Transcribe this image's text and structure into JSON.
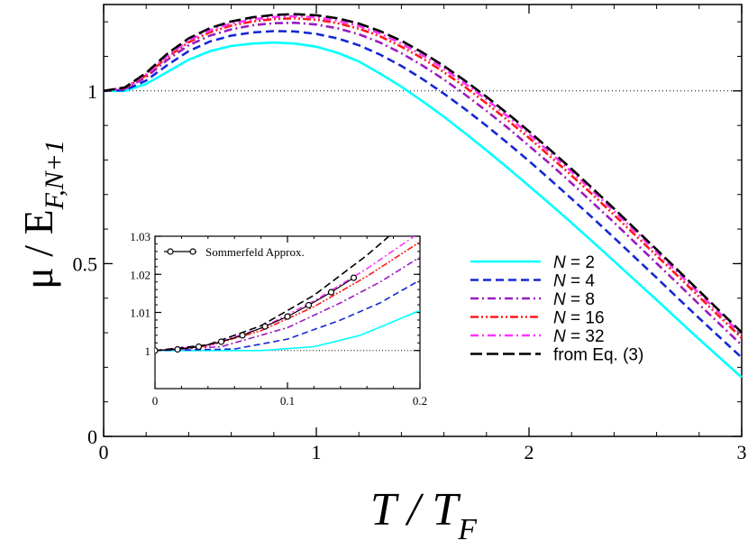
{
  "chart_data": [
    {
      "type": "line",
      "x_min": 0,
      "x_max": 3,
      "y_min": 0,
      "y_max": 1.25,
      "xticks": [
        0,
        1,
        2,
        3
      ],
      "yticks": [
        0,
        0.5,
        1
      ],
      "xtick_labels": [
        "0",
        "1",
        "2",
        "3"
      ],
      "ytick_labels": [
        "0",
        "0.5",
        "1"
      ],
      "xlabel": "T / T",
      "xlabel_sub": "F",
      "ylabel": "μ / E",
      "ylabel_sub": "F,N+1",
      "reference_line": 1,
      "series": [
        {
          "name": "N = 2",
          "label_italic": "N",
          "label_rest": " = 2",
          "color": "#00ffff",
          "dash": "",
          "x": [
            0,
            0.1,
            0.2,
            0.3,
            0.4,
            0.5,
            0.6,
            0.7,
            0.8,
            0.9,
            1.0,
            1.1,
            1.2,
            1.3,
            1.4,
            1.5,
            1.6,
            1.7,
            1.8,
            1.9,
            2.0,
            2.1,
            2.2,
            2.3,
            2.4,
            2.5,
            2.6,
            2.7,
            2.8,
            2.9,
            3.0
          ],
          "y": [
            1.0,
            1.0,
            1.02,
            1.055,
            1.09,
            1.115,
            1.13,
            1.137,
            1.14,
            1.137,
            1.128,
            1.11,
            1.085,
            1.05,
            1.012,
            0.97,
            0.925,
            0.877,
            0.828,
            0.777,
            0.725,
            0.672,
            0.618,
            0.563,
            0.507,
            0.451,
            0.395,
            0.338,
            0.281,
            0.226,
            0.171
          ]
        },
        {
          "name": "N = 4",
          "label_italic": "N",
          "label_rest": " = 4",
          "color": "#1428d6",
          "dash": "9,5",
          "x": [
            0,
            0.1,
            0.2,
            0.3,
            0.4,
            0.5,
            0.6,
            0.7,
            0.8,
            0.9,
            1.0,
            1.1,
            1.2,
            1.3,
            1.4,
            1.5,
            1.6,
            1.7,
            1.8,
            1.9,
            2.0,
            2.1,
            2.2,
            2.3,
            2.4,
            2.5,
            2.6,
            2.7,
            2.8,
            2.9,
            3.0
          ],
          "y": [
            1.0,
            1.002,
            1.03,
            1.075,
            1.115,
            1.143,
            1.16,
            1.169,
            1.173,
            1.172,
            1.165,
            1.152,
            1.132,
            1.105,
            1.072,
            1.034,
            0.992,
            0.947,
            0.899,
            0.849,
            0.797,
            0.743,
            0.688,
            0.632,
            0.575,
            0.517,
            0.459,
            0.4,
            0.342,
            0.285,
            0.228
          ]
        },
        {
          "name": "N = 8",
          "label_italic": "N",
          "label_rest": " = 8",
          "color": "#9b1bc0",
          "dash": "9,4,2,4",
          "x": [
            0,
            0.1,
            0.2,
            0.3,
            0.4,
            0.5,
            0.6,
            0.7,
            0.8,
            0.9,
            1.0,
            1.1,
            1.2,
            1.3,
            1.4,
            1.5,
            1.6,
            1.7,
            1.8,
            1.9,
            2.0,
            2.1,
            2.2,
            2.3,
            2.4,
            2.5,
            2.6,
            2.7,
            2.8,
            2.9,
            3.0
          ],
          "y": [
            1.0,
            1.006,
            1.04,
            1.09,
            1.132,
            1.16,
            1.178,
            1.19,
            1.196,
            1.197,
            1.192,
            1.181,
            1.164,
            1.14,
            1.109,
            1.073,
            1.033,
            0.989,
            0.942,
            0.893,
            0.841,
            0.788,
            0.733,
            0.676,
            0.619,
            0.56,
            0.501,
            0.442,
            0.382,
            0.323,
            0.264
          ]
        },
        {
          "name": "N = 16",
          "label_italic": "N",
          "label_rest": " = 16",
          "color": "#ff1a1a",
          "dash": "9,3,2,3,2,3",
          "x": [
            0,
            0.1,
            0.2,
            0.3,
            0.4,
            0.5,
            0.6,
            0.7,
            0.8,
            0.9,
            1.0,
            1.1,
            1.2,
            1.3,
            1.4,
            1.5,
            1.6,
            1.7,
            1.8,
            1.9,
            2.0,
            2.1,
            2.2,
            2.3,
            2.4,
            2.5,
            2.6,
            2.7,
            2.8,
            2.9,
            3.0
          ],
          "y": [
            1.0,
            1.008,
            1.045,
            1.098,
            1.141,
            1.17,
            1.189,
            1.201,
            1.208,
            1.21,
            1.206,
            1.196,
            1.18,
            1.158,
            1.128,
            1.094,
            1.054,
            1.011,
            0.964,
            0.915,
            0.864,
            0.81,
            0.755,
            0.699,
            0.641,
            0.582,
            0.523,
            0.464,
            0.404,
            0.344,
            0.285
          ]
        },
        {
          "name": "N = 32",
          "label_italic": "N",
          "label_rest": " = 32",
          "color": "#ff33ff",
          "dash": "9,4,2,4",
          "x": [
            0,
            0.1,
            0.2,
            0.3,
            0.4,
            0.5,
            0.6,
            0.7,
            0.8,
            0.9,
            1.0,
            1.1,
            1.2,
            1.3,
            1.4,
            1.5,
            1.6,
            1.7,
            1.8,
            1.9,
            2.0,
            2.1,
            2.2,
            2.3,
            2.4,
            2.5,
            2.6,
            2.7,
            2.8,
            2.9,
            3.0
          ],
          "y": [
            1.0,
            1.009,
            1.048,
            1.102,
            1.146,
            1.176,
            1.195,
            1.207,
            1.214,
            1.216,
            1.213,
            1.203,
            1.188,
            1.166,
            1.137,
            1.103,
            1.064,
            1.021,
            0.975,
            0.926,
            0.875,
            0.821,
            0.766,
            0.71,
            0.652,
            0.593,
            0.534,
            0.474,
            0.414,
            0.354,
            0.294
          ]
        },
        {
          "name": "from Eq. (3)",
          "label_italic": "",
          "label_rest": "from Eq. (3)",
          "color": "#000000",
          "dash": "13,5",
          "x": [
            0,
            0.1,
            0.2,
            0.3,
            0.4,
            0.5,
            0.6,
            0.7,
            0.8,
            0.9,
            1.0,
            1.1,
            1.2,
            1.3,
            1.4,
            1.5,
            1.6,
            1.7,
            1.8,
            1.9,
            2.0,
            2.1,
            2.2,
            2.3,
            2.4,
            2.5,
            2.6,
            2.7,
            2.8,
            2.9,
            3.0
          ],
          "y": [
            1.0,
            1.01,
            1.052,
            1.108,
            1.152,
            1.182,
            1.201,
            1.213,
            1.22,
            1.222,
            1.219,
            1.21,
            1.195,
            1.173,
            1.145,
            1.111,
            1.072,
            1.029,
            0.983,
            0.934,
            0.883,
            0.829,
            0.774,
            0.717,
            0.659,
            0.6,
            0.541,
            0.481,
            0.421,
            0.361,
            0.301
          ]
        }
      ]
    },
    {
      "type": "line",
      "role": "inset",
      "x_min": 0,
      "x_max": 0.2,
      "y_min": 0.99,
      "y_max": 1.03,
      "xticks": [
        0,
        0.1,
        0.2
      ],
      "yticks": [
        1,
        1.01,
        1.02,
        1.03
      ],
      "xtick_labels": [
        "0",
        "0.1",
        "0.2"
      ],
      "ytick_labels": [
        "1",
        "1.01",
        "1.02",
        "1.03"
      ],
      "reference_line": 1,
      "legend_label": "Sommerfeld Approx.",
      "series": [
        {
          "name": "N = 2",
          "color": "#00ffff",
          "dash": "",
          "x": [
            0,
            0.08,
            0.12,
            0.155,
            0.2
          ],
          "y": [
            1.0,
            1.0,
            1.001,
            1.004,
            1.0105
          ]
        },
        {
          "name": "N = 4",
          "color": "#1428d6",
          "dash": "7,4",
          "x": [
            0,
            0.06,
            0.1,
            0.14,
            0.17,
            0.2
          ],
          "y": [
            1.0,
            1.0004,
            1.003,
            1.008,
            1.0125,
            1.0185
          ]
        },
        {
          "name": "N = 8",
          "color": "#9b1bc0",
          "dash": "7,3,2,3",
          "x": [
            0,
            0.05,
            0.1,
            0.14,
            0.17,
            0.2
          ],
          "y": [
            1.0,
            1.001,
            1.006,
            1.0125,
            1.018,
            1.0245
          ]
        },
        {
          "name": "N = 16",
          "color": "#ff1a1a",
          "dash": "7,2,2,2,2,2",
          "x": [
            0,
            0.04,
            0.08,
            0.12,
            0.16,
            0.2
          ],
          "y": [
            1.0,
            1.0012,
            1.0052,
            1.0115,
            1.0195,
            1.0285
          ]
        },
        {
          "name": "N = 32",
          "color": "#ff33ff",
          "dash": "7,3,2,3",
          "x": [
            0,
            0.04,
            0.08,
            0.12,
            0.16,
            0.2
          ],
          "y": [
            1.0,
            1.0013,
            1.0058,
            1.013,
            1.0215,
            1.031
          ]
        },
        {
          "name": "from Eq. (3)",
          "color": "#000000",
          "dash": "8,4",
          "x": [
            0,
            0.04,
            0.08,
            0.12,
            0.16,
            0.2
          ],
          "y": [
            1.0,
            1.0015,
            1.0065,
            1.0145,
            1.025,
            1.037
          ]
        },
        {
          "name": "Sommerfeld Approx.",
          "color": "#000000",
          "dash": "",
          "markers": true,
          "x": [
            0,
            0.017,
            0.033,
            0.05,
            0.066,
            0.083,
            0.1,
            0.116,
            0.133,
            0.15
          ],
          "y": [
            1.0,
            1.0003,
            1.001,
            1.0023,
            1.004,
            1.0063,
            1.0089,
            1.0119,
            1.0153,
            1.0191
          ]
        }
      ]
    }
  ]
}
